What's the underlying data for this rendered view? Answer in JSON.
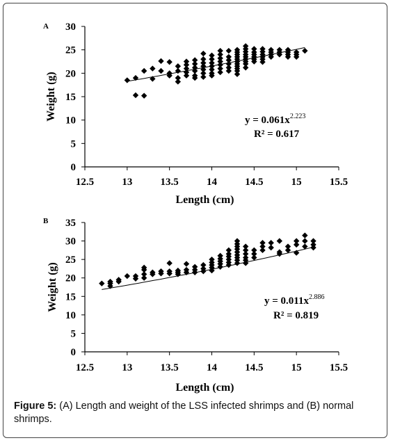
{
  "caption": {
    "label": "Figure 5:",
    "text": "(A) Length and weight of the LSS infected shrimps and (B) normal shrimps."
  },
  "colors": {
    "marker": "#000000",
    "axis": "#000000",
    "text": "#000000"
  },
  "chart_data": [
    {
      "type": "scatter",
      "panel_label": "A",
      "xlabel": "Length (cm)",
      "ylabel": "Weight (g)",
      "xlim": [
        12.5,
        15.5
      ],
      "ylim": [
        0,
        30
      ],
      "xticks": [
        "12.5",
        "13",
        "13.5",
        "14",
        "14.5",
        "15",
        "15.5"
      ],
      "yticks": [
        "0",
        "5",
        "10",
        "15",
        "20",
        "25",
        "30"
      ],
      "xtick_values": [
        12.5,
        13,
        13.5,
        14,
        14.5,
        15,
        15.5
      ],
      "ytick_values": [
        0,
        5,
        10,
        15,
        20,
        25,
        30
      ],
      "grid": false,
      "equation": {
        "coef": "y = 0.061x",
        "exp": "2.223"
      },
      "r2": "R² = 0.617",
      "trend": {
        "a": 0.061,
        "b": 2.223,
        "x_range": [
          13.0,
          15.1
        ]
      },
      "points": [
        [
          13.0,
          18.5
        ],
        [
          13.1,
          19.0
        ],
        [
          13.1,
          15.3
        ],
        [
          13.2,
          15.2
        ],
        [
          13.2,
          20.5
        ],
        [
          13.3,
          18.8
        ],
        [
          13.3,
          21.0
        ],
        [
          13.4,
          22.6
        ],
        [
          13.4,
          20.5
        ],
        [
          13.5,
          22.4
        ],
        [
          13.5,
          20.0
        ],
        [
          13.5,
          19.5
        ],
        [
          13.6,
          21.5
        ],
        [
          13.6,
          20.5
        ],
        [
          13.6,
          19.0
        ],
        [
          13.6,
          18.2
        ],
        [
          13.7,
          22.5
        ],
        [
          13.7,
          21.8
        ],
        [
          13.7,
          21.0
        ],
        [
          13.7,
          20.2
        ],
        [
          13.7,
          19.5
        ],
        [
          13.8,
          22.8
        ],
        [
          13.8,
          22.0
        ],
        [
          13.8,
          21.2
        ],
        [
          13.8,
          20.5
        ],
        [
          13.8,
          19.5
        ],
        [
          13.8,
          19.0
        ],
        [
          13.9,
          24.2
        ],
        [
          13.9,
          23.0
        ],
        [
          13.9,
          22.2
        ],
        [
          13.9,
          21.5
        ],
        [
          13.9,
          20.8
        ],
        [
          13.9,
          20.0
        ],
        [
          13.9,
          19.2
        ],
        [
          14.0,
          23.8
        ],
        [
          14.0,
          23.0
        ],
        [
          14.0,
          22.2
        ],
        [
          14.0,
          21.5
        ],
        [
          14.0,
          20.8
        ],
        [
          14.0,
          20.0
        ],
        [
          14.0,
          19.5
        ],
        [
          14.1,
          24.8
        ],
        [
          14.1,
          24.0
        ],
        [
          14.1,
          23.2
        ],
        [
          14.1,
          22.5
        ],
        [
          14.1,
          21.8
        ],
        [
          14.1,
          21.0
        ],
        [
          14.1,
          20.2
        ],
        [
          14.2,
          24.8
        ],
        [
          14.2,
          23.5
        ],
        [
          14.2,
          22.8
        ],
        [
          14.2,
          22.0
        ],
        [
          14.2,
          21.2
        ],
        [
          14.2,
          20.5
        ],
        [
          14.3,
          25.0
        ],
        [
          14.3,
          24.5
        ],
        [
          14.3,
          24.0
        ],
        [
          14.3,
          23.5
        ],
        [
          14.3,
          23.0
        ],
        [
          14.3,
          22.5
        ],
        [
          14.3,
          22.0
        ],
        [
          14.3,
          21.5
        ],
        [
          14.3,
          21.0
        ],
        [
          14.3,
          20.5
        ],
        [
          14.3,
          19.8
        ],
        [
          14.4,
          25.8
        ],
        [
          14.4,
          25.2
        ],
        [
          14.4,
          24.6
        ],
        [
          14.4,
          24.0
        ],
        [
          14.4,
          23.5
        ],
        [
          14.4,
          23.0
        ],
        [
          14.4,
          22.5
        ],
        [
          14.4,
          22.0
        ],
        [
          14.4,
          21.2
        ],
        [
          14.5,
          25.2
        ],
        [
          14.5,
          24.5
        ],
        [
          14.5,
          24.0
        ],
        [
          14.5,
          23.5
        ],
        [
          14.5,
          23.0
        ],
        [
          14.5,
          22.5
        ],
        [
          14.6,
          25.2
        ],
        [
          14.6,
          24.6
        ],
        [
          14.6,
          24.0
        ],
        [
          14.6,
          23.5
        ],
        [
          14.6,
          23.0
        ],
        [
          14.6,
          22.4
        ],
        [
          14.7,
          25.0
        ],
        [
          14.7,
          24.5
        ],
        [
          14.7,
          24.0
        ],
        [
          14.7,
          23.5
        ],
        [
          14.8,
          25.0
        ],
        [
          14.8,
          24.5
        ],
        [
          14.8,
          24.0
        ],
        [
          14.9,
          25.0
        ],
        [
          14.9,
          24.5
        ],
        [
          14.9,
          24.0
        ],
        [
          14.9,
          23.5
        ],
        [
          15.0,
          24.5
        ],
        [
          15.0,
          24.0
        ],
        [
          15.0,
          23.5
        ],
        [
          15.1,
          24.8
        ]
      ]
    },
    {
      "type": "scatter",
      "panel_label": "B",
      "xlabel": "Length  (cm)",
      "ylabel": "Weight (g)",
      "xlim": [
        12.5,
        15.5
      ],
      "ylim": [
        0,
        35
      ],
      "xticks": [
        "12.5",
        "13",
        "13.5",
        "14",
        "14.5",
        "15",
        "15.5"
      ],
      "yticks": [
        "0",
        "5",
        "10",
        "15",
        "20",
        "25",
        "30",
        "35"
      ],
      "xtick_values": [
        12.5,
        13,
        13.5,
        14,
        14.5,
        15,
        15.5
      ],
      "ytick_values": [
        0,
        5,
        10,
        15,
        20,
        25,
        30,
        35
      ],
      "grid": false,
      "equation": {
        "coef": "y = 0.011x",
        "exp": "2.886"
      },
      "r2": "R² = 0.819",
      "trend": {
        "a": 0.011,
        "b": 2.886,
        "x_range": [
          12.7,
          15.2
        ]
      },
      "points": [
        [
          12.7,
          18.5
        ],
        [
          12.8,
          18.5
        ],
        [
          12.8,
          17.8
        ],
        [
          12.8,
          19.0
        ],
        [
          12.9,
          19.5
        ],
        [
          12.9,
          19.0
        ],
        [
          13.0,
          20.5
        ],
        [
          13.1,
          20.5
        ],
        [
          13.1,
          19.8
        ],
        [
          13.2,
          21.0
        ],
        [
          13.2,
          20.0
        ],
        [
          13.2,
          22.2
        ],
        [
          13.2,
          22.8
        ],
        [
          13.3,
          21.5
        ],
        [
          13.3,
          21.0
        ],
        [
          13.4,
          21.8
        ],
        [
          13.4,
          21.2
        ],
        [
          13.5,
          21.8
        ],
        [
          13.5,
          21.2
        ],
        [
          13.5,
          24.0
        ],
        [
          13.6,
          22.0
        ],
        [
          13.6,
          21.5
        ],
        [
          13.6,
          21.0
        ],
        [
          13.7,
          22.2
        ],
        [
          13.7,
          21.5
        ],
        [
          13.7,
          23.8
        ],
        [
          13.8,
          23.0
        ],
        [
          13.8,
          22.2
        ],
        [
          13.8,
          21.5
        ],
        [
          13.9,
          23.5
        ],
        [
          13.9,
          22.5
        ],
        [
          13.9,
          21.8
        ],
        [
          14.0,
          25.0
        ],
        [
          14.0,
          24.2
        ],
        [
          14.0,
          23.5
        ],
        [
          14.0,
          22.8
        ],
        [
          14.0,
          22.0
        ],
        [
          14.1,
          26.0
        ],
        [
          14.1,
          25.2
        ],
        [
          14.1,
          24.5
        ],
        [
          14.1,
          23.8
        ],
        [
          14.1,
          23.0
        ],
        [
          14.2,
          27.5
        ],
        [
          14.2,
          26.5
        ],
        [
          14.2,
          25.8
        ],
        [
          14.2,
          25.0
        ],
        [
          14.2,
          24.2
        ],
        [
          14.2,
          23.5
        ],
        [
          14.3,
          30.0
        ],
        [
          14.3,
          29.2
        ],
        [
          14.3,
          28.5
        ],
        [
          14.3,
          27.8
        ],
        [
          14.3,
          27.0
        ],
        [
          14.3,
          26.2
        ],
        [
          14.3,
          25.5
        ],
        [
          14.3,
          24.8
        ],
        [
          14.3,
          24.0
        ],
        [
          14.4,
          28.5
        ],
        [
          14.4,
          27.5
        ],
        [
          14.4,
          26.5
        ],
        [
          14.4,
          25.5
        ],
        [
          14.4,
          24.8
        ],
        [
          14.4,
          24.0
        ],
        [
          14.5,
          27.5
        ],
        [
          14.5,
          26.5
        ],
        [
          14.5,
          25.5
        ],
        [
          14.6,
          29.5
        ],
        [
          14.6,
          28.5
        ],
        [
          14.6,
          27.5
        ],
        [
          14.7,
          29.5
        ],
        [
          14.7,
          28.2
        ],
        [
          14.8,
          30.0
        ],
        [
          14.8,
          27.0
        ],
        [
          14.8,
          26.5
        ],
        [
          14.9,
          28.5
        ],
        [
          14.9,
          27.5
        ],
        [
          15.0,
          30.0
        ],
        [
          15.0,
          29.0
        ],
        [
          15.0,
          26.8
        ],
        [
          15.1,
          31.5
        ],
        [
          15.1,
          30.0
        ],
        [
          15.1,
          28.5
        ],
        [
          15.2,
          30.0
        ],
        [
          15.2,
          29.0
        ],
        [
          15.2,
          28.2
        ]
      ]
    }
  ]
}
